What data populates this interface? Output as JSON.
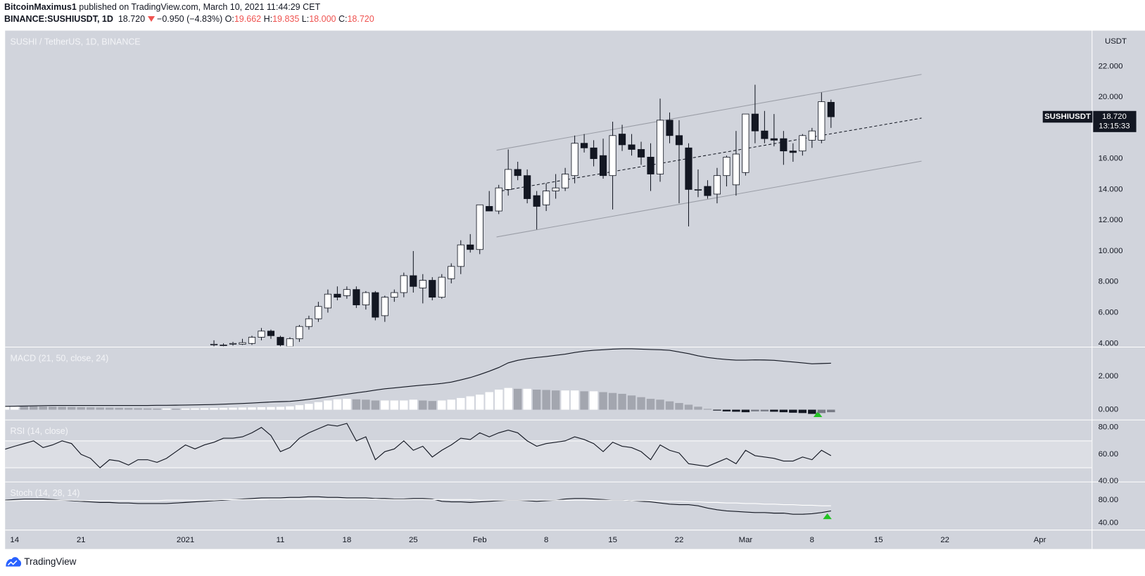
{
  "header": {
    "publisher": "BitcoinMaximus1",
    "published": "published on TradingView.com, March 10, 2021 11:44:29 CET",
    "symbol": "BINANCE:SUSHIUSDT, 1D",
    "last": "18.720",
    "change": "−0.950 (−4.83%)",
    "o_label": "O:",
    "o": "19.662",
    "h_label": "H:",
    "h": "19.835",
    "l_label": "L:",
    "l": "18.000",
    "c_label": "C:",
    "c": "18.720"
  },
  "footer": {
    "brand": "TradingView"
  },
  "chart_data": [
    {
      "type": "candlestick",
      "title": "SUSHI / TetherUS, 1D, BINANCE",
      "unit": "USDT",
      "up_color": "#ffffff",
      "down_color": "#131722",
      "border_color": "#131722",
      "categories": [
        null,
        "14",
        null,
        null,
        null,
        null,
        null,
        null,
        "21",
        null,
        null,
        null,
        null,
        null,
        null,
        null,
        null,
        null,
        null,
        "2021",
        null,
        null,
        null,
        null,
        null,
        null,
        null,
        null,
        null,
        "11",
        null,
        null,
        null,
        null,
        null,
        null,
        "18",
        null,
        null,
        null,
        null,
        null,
        null,
        "25",
        null,
        null,
        null,
        null,
        null,
        null,
        "Feb",
        null,
        null,
        null,
        null,
        null,
        null,
        "8",
        null,
        null,
        null,
        null,
        null,
        null,
        "15",
        null,
        null,
        null,
        null,
        null,
        null,
        "22",
        null,
        null,
        null,
        null,
        null,
        null,
        "Mar",
        null,
        null,
        null,
        null,
        null,
        null,
        "8",
        null,
        null,
        null,
        null,
        null,
        null,
        "15",
        null,
        null,
        null,
        null,
        null,
        null,
        "22",
        null,
        null,
        null,
        null,
        null,
        null,
        null,
        null,
        null,
        "Apr",
        null
      ],
      "open": [
        null,
        null,
        null,
        null,
        null,
        null,
        null,
        null,
        null,
        null,
        null,
        null,
        null,
        null,
        null,
        null,
        null,
        null,
        null,
        null,
        null,
        null,
        3.9,
        3.9,
        3.95,
        3.95,
        4.0,
        4.4,
        4.8,
        4.4,
        3.8,
        4.3,
        5.1,
        5.6,
        6.3,
        7.2,
        7.1,
        7.5,
        6.5,
        7.3,
        5.8,
        7.0,
        7.3,
        8.4,
        7.6,
        8.1,
        7.0,
        8.2,
        9.0,
        10.4,
        10.1,
        12.9,
        12.6,
        14.0,
        15.3,
        14.9,
        13.6,
        13.0,
        13.9,
        14.1,
        14.9,
        17.0,
        16.7,
        16.2,
        14.9,
        17.6,
        16.9,
        16.6,
        16.1,
        15.0,
        18.5,
        17.5,
        16.7,
        14.0,
        14.2,
        13.7,
        14.9,
        14.3,
        15.1,
        18.9,
        17.8,
        17.3,
        17.3,
        16.5,
        16.5,
        17.2,
        17.2,
        19.662,
        null,
        null,
        null,
        null,
        null,
        null,
        null,
        null,
        null,
        null,
        null,
        null,
        null,
        null,
        null,
        null,
        null,
        null,
        null,
        null,
        null,
        null,
        null
      ],
      "high": [
        null,
        null,
        null,
        null,
        null,
        null,
        null,
        null,
        null,
        null,
        null,
        null,
        null,
        null,
        null,
        null,
        null,
        null,
        null,
        null,
        null,
        null,
        4.2,
        4.0,
        4.1,
        4.3,
        4.5,
        5.0,
        4.9,
        4.5,
        4.4,
        5.2,
        5.8,
        6.7,
        7.5,
        7.7,
        7.7,
        7.7,
        7.4,
        7.4,
        7.1,
        7.5,
        8.6,
        10.0,
        8.5,
        8.3,
        8.5,
        9.2,
        10.7,
        11.1,
        13.0,
        13.9,
        14.3,
        16.6,
        15.8,
        15.3,
        13.9,
        14.4,
        15.0,
        15.4,
        17.5,
        17.6,
        17.2,
        17.3,
        18.4,
        18.2,
        17.6,
        17.1,
        17.0,
        19.9,
        19.0,
        18.5,
        17.0,
        15.3,
        14.6,
        15.4,
        16.2,
        17.8,
        18.9,
        20.8,
        19.1,
        18.9,
        17.8,
        17.0,
        17.6,
        18.0,
        20.3,
        19.835,
        null,
        null,
        null,
        null,
        null,
        null,
        null,
        null,
        null,
        null,
        null,
        null,
        null,
        null,
        null,
        null,
        null,
        null,
        null,
        null,
        null,
        null,
        null
      ],
      "low": [
        null,
        null,
        null,
        null,
        null,
        null,
        null,
        null,
        null,
        null,
        null,
        null,
        null,
        null,
        null,
        null,
        null,
        null,
        null,
        null,
        null,
        null,
        3.8,
        3.8,
        3.85,
        3.9,
        3.9,
        4.2,
        4.3,
        3.6,
        3.5,
        4.1,
        4.9,
        5.4,
        6.0,
        6.8,
        6.9,
        6.3,
        6.2,
        5.5,
        5.4,
        6.7,
        7.0,
        7.3,
        6.6,
        6.8,
        6.9,
        7.9,
        8.5,
        9.9,
        9.8,
        12.6,
        12.4,
        13.6,
        14.6,
        13.1,
        11.4,
        12.6,
        13.4,
        13.9,
        14.4,
        16.4,
        15.5,
        14.7,
        12.7,
        16.5,
        16.2,
        15.6,
        13.9,
        14.5,
        17.0,
        13.1,
        11.6,
        13.5,
        13.4,
        13.1,
        14.2,
        13.6,
        14.9,
        17.0,
        17.0,
        16.8,
        15.6,
        15.8,
        16.2,
        16.7,
        17.0,
        18.0,
        null,
        null,
        null,
        null,
        null,
        null,
        null,
        null,
        null,
        null,
        null,
        null,
        null,
        null,
        null,
        null,
        null,
        null,
        null,
        null,
        null,
        null,
        null
      ],
      "close": [
        null,
        null,
        null,
        null,
        null,
        null,
        null,
        null,
        null,
        null,
        null,
        null,
        null,
        null,
        null,
        null,
        null,
        null,
        null,
        null,
        null,
        null,
        3.95,
        3.9,
        4.0,
        4.05,
        4.4,
        4.8,
        4.5,
        3.9,
        4.3,
        5.1,
        5.6,
        6.4,
        7.2,
        7.0,
        7.5,
        6.5,
        7.3,
        5.7,
        7.0,
        7.3,
        8.4,
        7.7,
        8.1,
        7.0,
        8.3,
        9.0,
        10.4,
        10.1,
        13.0,
        12.6,
        14.1,
        15.3,
        14.9,
        13.4,
        12.9,
        13.9,
        14.1,
        15.0,
        17.0,
        16.7,
        16.0,
        14.9,
        17.5,
        16.9,
        16.6,
        16.1,
        15.0,
        18.5,
        17.5,
        16.9,
        14.0,
        14.0,
        13.6,
        14.9,
        16.1,
        16.3,
        18.9,
        17.8,
        17.3,
        17.2,
        16.5,
        16.4,
        17.5,
        17.8,
        19.7,
        18.72,
        null,
        null,
        null,
        null,
        null,
        null,
        null,
        null,
        null,
        null,
        null,
        null,
        null,
        null,
        null,
        null,
        null,
        null,
        null,
        null,
        null,
        null,
        null
      ],
      "ylim": [
        3.81,
        24.27
      ],
      "yticks": [
        {
          "value": 4,
          "label": "4.000"
        },
        {
          "value": 6,
          "label": "6.000"
        },
        {
          "value": 8,
          "label": "8.000"
        },
        {
          "value": 10,
          "label": "10.000"
        },
        {
          "value": 12,
          "label": "12.000"
        },
        {
          "value": 14,
          "label": "14.000"
        },
        {
          "value": 16,
          "label": "16.000"
        },
        {
          "value": 18,
          "label": "18.000"
        },
        {
          "value": 20,
          "label": "20.000"
        },
        {
          "value": 22,
          "label": "22.000"
        }
      ],
      "price_tag": {
        "name": "SUSHIUSDT",
        "label": "18.720",
        "countdown": "13:15:33"
      }
    },
    {
      "type": "macd",
      "title": "MACD (21, 50, close, 24)",
      "line_color": "#131722",
      "histogram_colors": {
        "grow_above": "#ffffff",
        "fall_above": "#a3a6af",
        "grow_below": "#131722",
        "fall_below": "#787b86"
      },
      "line": [
        0.2,
        0.21,
        0.22,
        0.23,
        0.24,
        0.25,
        0.25,
        0.25,
        0.25,
        0.25,
        0.25,
        0.25,
        0.25,
        0.25,
        0.25,
        0.25,
        0.26,
        0.26,
        0.27,
        0.28,
        0.29,
        0.3,
        0.31,
        0.33,
        0.35,
        0.37,
        0.4,
        0.43,
        0.46,
        0.48,
        0.5,
        0.55,
        0.62,
        0.69,
        0.77,
        0.85,
        0.93,
        1.01,
        1.08,
        1.17,
        1.25,
        1.3,
        1.36,
        1.42,
        1.47,
        1.51,
        1.57,
        1.65,
        1.78,
        1.92,
        2.1,
        2.3,
        2.52,
        2.8,
        2.95,
        3.05,
        3.12,
        3.18,
        3.25,
        3.32,
        3.42,
        3.5,
        3.55,
        3.58,
        3.62,
        3.64,
        3.64,
        3.62,
        3.6,
        3.58,
        3.55,
        3.45,
        3.35,
        3.22,
        3.12,
        3.05,
        3.0,
        2.96,
        2.96,
        2.98,
        2.97,
        2.95,
        2.9,
        2.85,
        2.8,
        2.74,
        2.76,
        2.78,
        null,
        null,
        null,
        null,
        null,
        null,
        null,
        null,
        null,
        null,
        null,
        null,
        null,
        null,
        null,
        null,
        null,
        null,
        null,
        null,
        null,
        null,
        null
      ],
      "histogram": [
        0.22,
        0.22,
        0.21,
        0.2,
        0.19,
        0.18,
        0.17,
        0.16,
        0.15,
        0.14,
        0.13,
        0.12,
        0.11,
        0.1,
        0.09,
        0.08,
        0.07,
        0.07,
        0.06,
        0.07,
        0.08,
        0.09,
        0.1,
        0.11,
        0.12,
        0.13,
        0.14,
        0.15,
        0.16,
        0.17,
        0.2,
        0.27,
        0.35,
        0.45,
        0.55,
        0.62,
        0.65,
        0.62,
        0.6,
        0.55,
        0.55,
        0.55,
        0.55,
        0.6,
        0.55,
        0.52,
        0.55,
        0.6,
        0.7,
        0.8,
        0.9,
        1.05,
        1.2,
        1.3,
        1.25,
        1.25,
        1.2,
        1.18,
        1.15,
        1.15,
        1.15,
        1.1,
        1.1,
        1.05,
        1.0,
        0.95,
        0.85,
        0.75,
        0.65,
        0.6,
        0.5,
        0.4,
        0.3,
        0.18,
        0.05,
        -0.05,
        -0.1,
        -0.12,
        -0.15,
        -0.1,
        -0.1,
        -0.12,
        -0.15,
        -0.18,
        -0.2,
        -0.25,
        -0.2,
        -0.15,
        null,
        null,
        null,
        null,
        null,
        null,
        null,
        null,
        null,
        null,
        null,
        null,
        null,
        null,
        null,
        null,
        null,
        null,
        null,
        null,
        null,
        null,
        null
      ],
      "ylim": [
        -0.57,
        3.7
      ],
      "yticks": [
        {
          "value": 0,
          "label": "0.000"
        },
        {
          "value": 2,
          "label": "2.000"
        }
      ]
    },
    {
      "type": "line",
      "title": "RSI (14, close)",
      "color": "#131722",
      "bands": [
        50,
        70
      ],
      "band_color": "#dcdee4",
      "values": [
        63.8,
        66,
        68,
        70,
        65,
        67,
        70,
        68,
        60,
        57,
        50,
        56,
        55,
        52,
        56,
        56,
        54,
        57,
        62,
        67,
        64,
        67,
        69,
        72,
        72,
        73,
        76,
        80,
        74,
        62,
        65,
        72,
        76,
        79,
        82,
        81,
        83,
        70,
        73,
        56,
        62,
        64,
        70,
        63,
        66,
        58,
        63,
        67,
        72,
        71,
        76,
        73,
        76,
        78,
        76,
        70,
        66,
        68,
        69,
        70,
        73,
        71,
        68,
        62,
        69,
        66,
        65,
        62,
        56,
        67,
        63,
        61,
        53,
        52,
        51,
        54,
        57,
        53,
        63,
        59,
        58,
        57,
        55,
        55,
        58,
        56,
        63,
        59,
        null,
        null,
        null,
        null,
        null,
        null,
        null,
        null,
        null,
        null,
        null,
        null,
        null,
        null,
        null,
        null,
        null,
        null,
        null,
        null,
        null,
        null,
        null
      ],
      "ylim": [
        40,
        85
      ],
      "yticks": [
        {
          "value": 80,
          "label": "80.00"
        },
        {
          "value": 60,
          "label": "60.00"
        },
        {
          "value": 40,
          "label": "40.00"
        }
      ]
    },
    {
      "type": "line",
      "title": "Stoch (14, 28, 14)",
      "series": [
        {
          "color": "#131722",
          "values": [
            80,
            81,
            82,
            82,
            82,
            81,
            80,
            79,
            78,
            77,
            76,
            76,
            75,
            75,
            74,
            74,
            74,
            74,
            75,
            76,
            77,
            78,
            79,
            80,
            81,
            82,
            83,
            84,
            84,
            84,
            85,
            85,
            86,
            86,
            85,
            85,
            84,
            84,
            84,
            83,
            83,
            82,
            82,
            83,
            83,
            82,
            78,
            77,
            77,
            76,
            77,
            78,
            79,
            80,
            80,
            79,
            78,
            79,
            80,
            82,
            83,
            83,
            82,
            81,
            80,
            80,
            79,
            78,
            77,
            75,
            73,
            72,
            72,
            70,
            66,
            63,
            61,
            60,
            59,
            58,
            58,
            57,
            57,
            55,
            55,
            56,
            58,
            61,
            null,
            null,
            null,
            null,
            null,
            null,
            null,
            null,
            null,
            null,
            null,
            null,
            null,
            null,
            null,
            null,
            null,
            null,
            null,
            null,
            null,
            null,
            null
          ]
        },
        {
          "color": "#ffffff",
          "values": [
            79,
            79,
            80,
            80,
            80,
            80,
            80,
            80,
            79,
            79,
            79,
            79,
            79,
            79,
            79,
            79,
            79,
            80,
            80,
            80,
            80,
            80,
            80,
            81,
            81,
            81,
            81,
            81,
            82,
            82,
            82,
            82,
            82,
            82,
            82,
            82,
            82,
            82,
            82,
            82,
            81,
            81,
            81,
            81,
            81,
            81,
            81,
            81,
            81,
            81,
            80,
            80,
            80,
            80,
            80,
            80,
            80,
            80,
            80,
            80,
            80,
            80,
            80,
            80,
            80,
            80,
            79,
            79,
            79,
            78,
            78,
            78,
            77,
            77,
            76,
            76,
            75,
            75,
            74,
            74,
            73,
            73,
            72,
            72,
            71,
            71,
            70,
            70,
            null,
            null,
            null,
            null,
            null,
            null,
            null,
            null,
            null,
            null,
            null,
            null,
            null,
            null,
            null,
            null,
            null,
            null,
            null,
            null,
            null,
            null,
            null
          ]
        }
      ],
      "ylim": [
        27,
        111
      ],
      "yticks": [
        {
          "value": 80,
          "label": "80.00"
        },
        {
          "value": 40,
          "label": "40.00"
        }
      ]
    }
  ]
}
